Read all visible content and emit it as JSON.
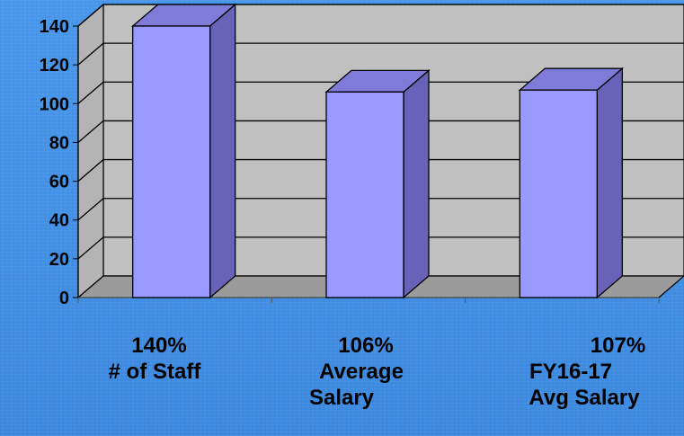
{
  "chart_data": {
    "type": "bar",
    "categories": [
      {
        "value_label": "140%",
        "label_lines": [
          "# of Staff"
        ]
      },
      {
        "value_label": "106%",
        "label_lines": [
          "Average",
          "Salary"
        ]
      },
      {
        "value_label": "107%",
        "label_lines": [
          "FY16-17",
          "Avg Salary"
        ]
      }
    ],
    "values": [
      140,
      106,
      107
    ],
    "ylim": [
      0,
      140
    ],
    "yticks": [
      "0",
      "20",
      "40",
      "60",
      "80",
      "100",
      "120",
      "140"
    ],
    "grid": true,
    "legend": "none",
    "colors": {
      "bar_front": "#9999ff",
      "bar_side": "#6a62b8",
      "bar_top": "#7f7bd9",
      "wall": "#c0c0c0",
      "floor": "#9b9b9b",
      "background": "#3f8fe6"
    }
  }
}
